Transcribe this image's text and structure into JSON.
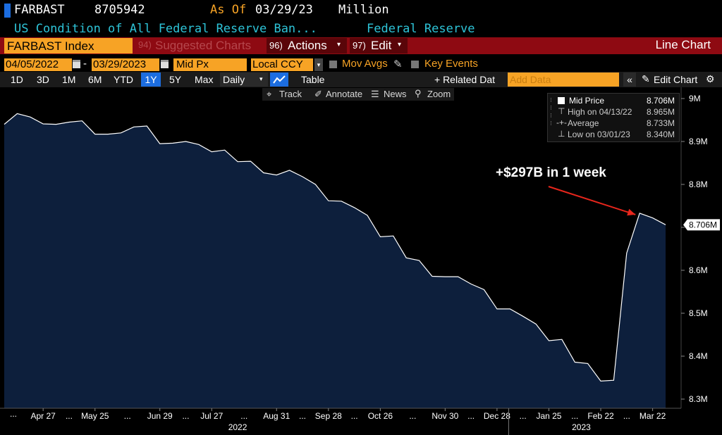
{
  "header": {
    "ticker": "FARBAST",
    "value": "8705942",
    "asof_label": "As Of",
    "asof_date": "03/29/23",
    "units": "Million",
    "description": "US Condition of All Federal Reserve Ban...",
    "source": "Federal Reserve"
  },
  "toolbar": {
    "security": "FARBAST Index",
    "suggested_num": "94)",
    "suggested_label": "Suggested Charts",
    "actions_num": "96)",
    "actions_label": "Actions",
    "edit_num": "97)",
    "edit_label": "Edit",
    "chart_type": "Line Chart"
  },
  "controls": {
    "start_date": "04/05/2022",
    "dash": "-",
    "end_date": "03/29/2023",
    "field": "Mid Px",
    "currency": "Local CCY",
    "mov_avgs": "Mov Avgs",
    "key_events": "Key Events"
  },
  "periods": [
    "1D",
    "3D",
    "1M",
    "6M",
    "YTD",
    "1Y",
    "5Y",
    "Max"
  ],
  "selected_period": "1Y",
  "frequency": "Daily",
  "table_label": "Table",
  "related_label": "+ Related Dat",
  "add_data_placeholder": "Add Data",
  "edit_chart_label": "Edit Chart",
  "tools": {
    "track": "Track",
    "annotate": "Annotate",
    "news": "News",
    "zoom": "Zoom"
  },
  "legend": {
    "mid_label": "Mid Price",
    "mid_value": "8.706M",
    "high_label": "High on 04/13/22",
    "high_value": "8.965M",
    "avg_label": "Average",
    "avg_value": "8.733M",
    "low_label": "Low on 03/01/23",
    "low_value": "8.340M"
  },
  "colors": {
    "accent_orange": "#f7a325",
    "bar_red": "#8e0a12",
    "cyan": "#2ec4d8",
    "area_fill": "#0d1f3c",
    "annotation_arrow": "#e8261c"
  },
  "chart_data": {
    "type": "area",
    "title": "",
    "x": [
      "Apr 6",
      "Apr 13",
      "Apr 20",
      "Apr 27",
      "May 4",
      "May 11",
      "May 18",
      "May 25",
      "Jun 1",
      "Jun 8",
      "Jun 15",
      "Jun 22",
      "Jun 29",
      "Jul 6",
      "Jul 13",
      "Jul 20",
      "Jul 27",
      "Aug 3",
      "Aug 10",
      "Aug 17",
      "Aug 24",
      "Aug 31",
      "Sep 7",
      "Sep 14",
      "Sep 21",
      "Sep 28",
      "Oct 5",
      "Oct 12",
      "Oct 19",
      "Oct 26",
      "Nov 2",
      "Nov 9",
      "Nov 16",
      "Nov 23",
      "Nov 30",
      "Dec 7",
      "Dec 14",
      "Dec 21",
      "Dec 28",
      "Jan 4",
      "Jan 11",
      "Jan 18",
      "Jan 25",
      "Feb 1",
      "Feb 8",
      "Feb 15",
      "Feb 22",
      "Mar 1",
      "Mar 8",
      "Mar 15",
      "Mar 22",
      "Mar 29"
    ],
    "values": [
      8.94,
      8.965,
      8.957,
      8.941,
      8.94,
      8.945,
      8.948,
      8.917,
      8.917,
      8.92,
      8.934,
      8.936,
      8.895,
      8.896,
      8.9,
      8.893,
      8.876,
      8.88,
      8.853,
      8.854,
      8.827,
      8.822,
      8.833,
      8.818,
      8.8,
      8.762,
      8.761,
      8.746,
      8.728,
      8.678,
      8.68,
      8.629,
      8.623,
      8.586,
      8.585,
      8.585,
      8.568,
      8.555,
      8.51,
      8.51,
      8.493,
      8.475,
      8.436,
      8.439,
      8.386,
      8.383,
      8.342,
      8.344,
      8.64,
      8.733,
      8.722,
      8.706
    ],
    "ylabel": "",
    "xlabel": "",
    "ylim": [
      8.28,
      9.0
    ],
    "yticks": [
      "8.3M",
      "8.4M",
      "8.5M",
      "8.6M",
      "8.7M",
      "8.8M",
      "8.9M",
      "9M"
    ],
    "ytick_values": [
      8.3,
      8.4,
      8.5,
      8.6,
      8.7,
      8.8,
      8.9,
      9.0
    ],
    "last_value_label": "8.706M",
    "xtick_labels": [
      "Apr 27",
      "May 25",
      "Jun 29",
      "Jul 27",
      "Aug 31",
      "Sep 28",
      "Oct 26",
      "Nov 30",
      "Dec 28",
      "Jan 25",
      "Feb 22",
      "Mar 22"
    ],
    "xtick_index": [
      3,
      7,
      12,
      16,
      21,
      25,
      29,
      34,
      38,
      42,
      46,
      50
    ],
    "year_labels": [
      "2022",
      "2023"
    ],
    "year_label_index": [
      18,
      44.5
    ],
    "year_divider_index": 38.9,
    "leading_ellipsis": "...",
    "annotation": "+$297B in 1 week",
    "annotation_target_index": 49
  }
}
